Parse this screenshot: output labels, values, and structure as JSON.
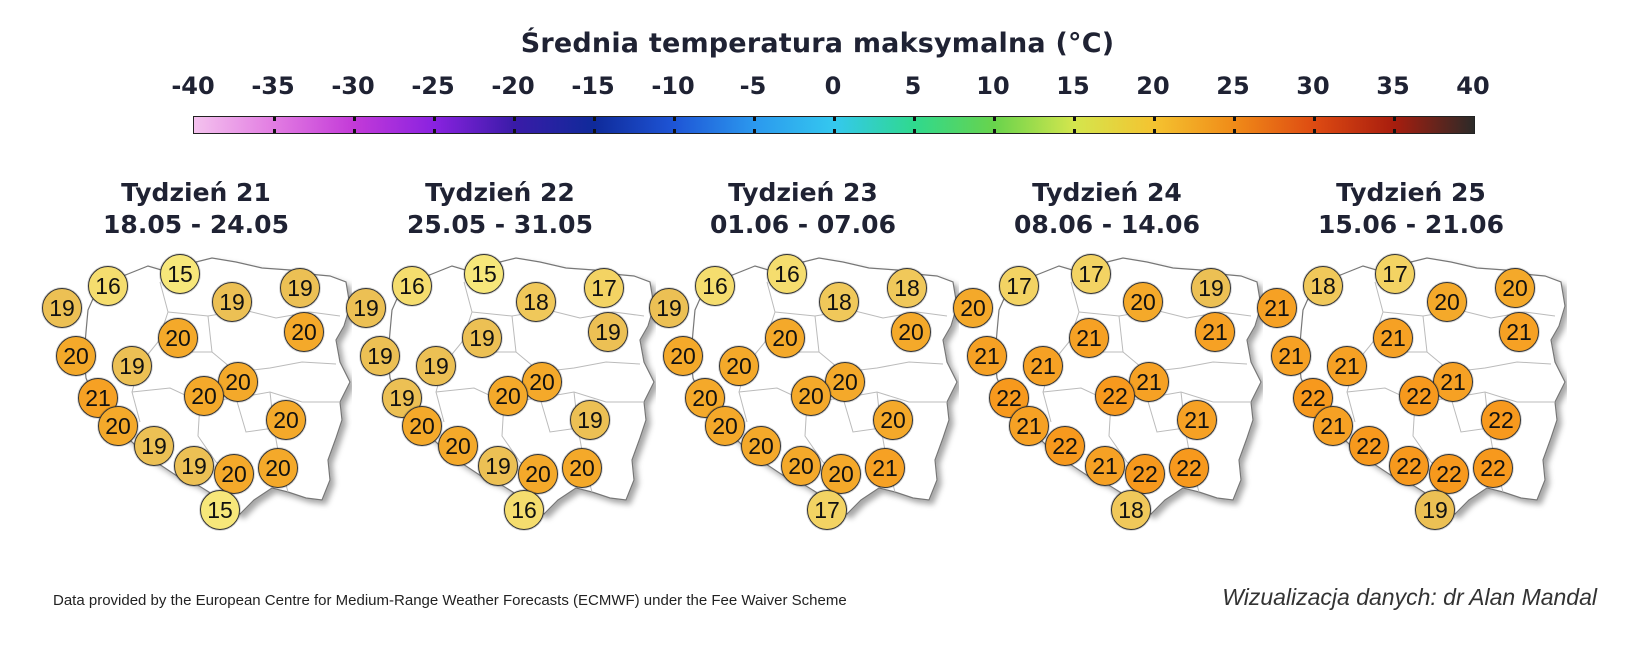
{
  "title": "Średnia temperatura maksymalna (°C)",
  "colorbar": {
    "ticks": [
      "-40",
      "-35",
      "-30",
      "-25",
      "-20",
      "-15",
      "-10",
      "-5",
      "0",
      "5",
      "10",
      "15",
      "20",
      "25",
      "30",
      "35",
      "40"
    ],
    "scale_min": -40,
    "scale_max": 40,
    "colors": {
      "15": "#f7e77a",
      "16": "#f5dd6e",
      "17": "#f3d363",
      "18": "#f0c85a",
      "19": "#ecc054",
      "20": "#f4a92a",
      "21": "#f6a124",
      "22": "#f7991d"
    }
  },
  "weeks": [
    {
      "title": "Tydzień 21",
      "dates": "18.05 - 24.05",
      "values": [
        "19",
        "16",
        "15",
        "19",
        "19",
        "20",
        "20",
        "20",
        "19",
        "20",
        "21",
        "20",
        "20",
        "20",
        "19",
        "19",
        "20",
        "20",
        "15"
      ]
    },
    {
      "title": "Tydzień 22",
      "dates": "25.05 - 31.05",
      "values": [
        "19",
        "16",
        "15",
        "18",
        "17",
        "19",
        "19",
        "19",
        "19",
        "20",
        "19",
        "20",
        "20",
        "19",
        "20",
        "19",
        "20",
        "20",
        "16"
      ]
    },
    {
      "title": "Tydzień 23",
      "dates": "01.06 - 07.06",
      "values": [
        "19",
        "16",
        "16",
        "18",
        "18",
        "20",
        "20",
        "20",
        "20",
        "20",
        "20",
        "20",
        "20",
        "20",
        "20",
        "20",
        "20",
        "21",
        "17"
      ]
    },
    {
      "title": "Tydzień 24",
      "dates": "08.06 - 14.06",
      "values": [
        "20",
        "17",
        "17",
        "20",
        "19",
        "21",
        "21",
        "21",
        "21",
        "21",
        "22",
        "22",
        "21",
        "21",
        "22",
        "21",
        "22",
        "22",
        "18"
      ]
    },
    {
      "title": "Tydzień 25",
      "dates": "15.06 - 21.06",
      "values": [
        "21",
        "18",
        "17",
        "20",
        "20",
        "21",
        "21",
        "21",
        "21",
        "21",
        "22",
        "22",
        "21",
        "22",
        "22",
        "22",
        "22",
        "22",
        "19"
      ]
    }
  ],
  "footer": {
    "credit": "Data provided by the European Centre for Medium-Range Weather Forecasts (ECMWF) under the Fee Waiver Scheme",
    "author": "Wizualizacja danych: dr Alan Mandal"
  }
}
